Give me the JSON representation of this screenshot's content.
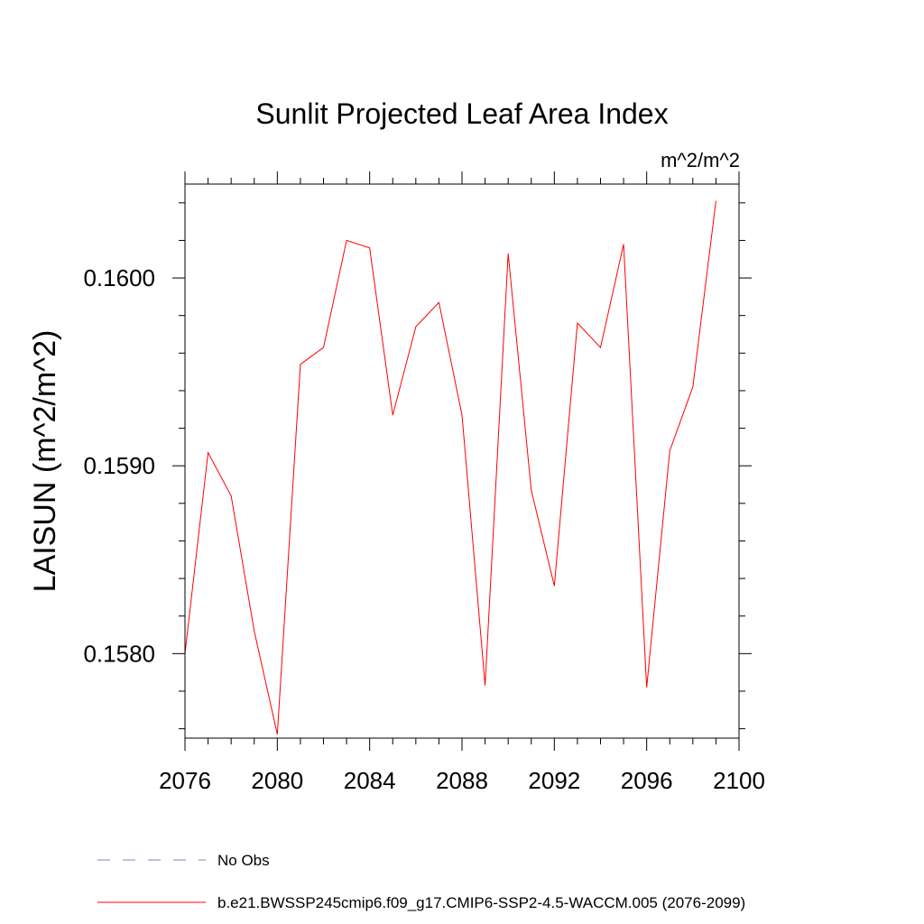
{
  "chart_data": {
    "type": "line",
    "title": "Sunlit Projected Leaf Area Index",
    "units": "m^2/m^2",
    "xlabel": "",
    "ylabel": "LAISUN  (m^2/m^2)",
    "xlim": [
      2076,
      2100
    ],
    "ylim": [
      0.15755,
      0.1605
    ],
    "x_ticks": [
      2076,
      2080,
      2084,
      2088,
      2092,
      2096,
      2100
    ],
    "x_tick_labels": [
      "2076",
      "2080",
      "2084",
      "2088",
      "2092",
      "2096",
      "2100"
    ],
    "y_ticks": [
      0.158,
      0.159,
      0.16
    ],
    "y_tick_labels": [
      "0.1580",
      "0.1590",
      "0.1600"
    ],
    "series": [
      {
        "name": "b.e21.BWSSP245cmip6.f09_g17.CMIP6-SSP2-4.5-WACCM.005 (2076-2099)",
        "color": "#ff0000",
        "x": [
          2076,
          2077,
          2078,
          2079,
          2080,
          2081,
          2082,
          2083,
          2084,
          2085,
          2086,
          2087,
          2088,
          2089,
          2090,
          2091,
          2092,
          2093,
          2094,
          2095,
          2096,
          2097,
          2098,
          2099
        ],
        "values": [
          0.158,
          0.15907,
          0.15884,
          0.15812,
          0.15757,
          0.15954,
          0.15963,
          0.1602,
          0.16016,
          0.15927,
          0.15974,
          0.15987,
          0.15927,
          0.15783,
          0.16013,
          0.15887,
          0.15836,
          0.15976,
          0.15963,
          0.16018,
          0.15782,
          0.15908,
          0.15942,
          0.16041
        ]
      }
    ],
    "legend": [
      {
        "label": "No Obs",
        "color": "#8080c0",
        "style": "dashed"
      },
      {
        "label": "b.e21.BWSSP245cmip6.f09_g17.CMIP6-SSP2-4.5-WACCM.005 (2076-2099)",
        "color": "#ff0000",
        "style": "solid"
      }
    ]
  }
}
